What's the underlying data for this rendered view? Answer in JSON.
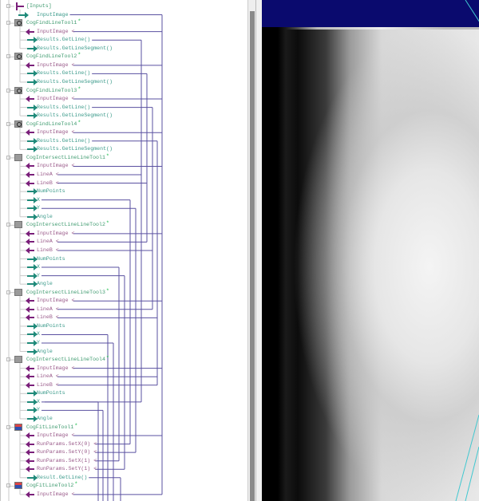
{
  "tree": {
    "rows": [
      {
        "kind": "inputs",
        "label": "[Inputs]"
      },
      {
        "kind": "out",
        "label": "InputImage"
      },
      {
        "kind": "tool",
        "icon": "find-line-icon",
        "label": "CogFindLineTool1"
      },
      {
        "kind": "in",
        "label": "InputImage"
      },
      {
        "kind": "out",
        "label": "Results.GetLine()"
      },
      {
        "kind": "out",
        "label": "Results.GetLineSegment()"
      },
      {
        "kind": "tool",
        "icon": "find-line-icon",
        "label": "CogFindLineTool2"
      },
      {
        "kind": "in",
        "label": "InputImage"
      },
      {
        "kind": "out",
        "label": "Results.GetLine()"
      },
      {
        "kind": "out",
        "label": "Results.GetLineSegment()"
      },
      {
        "kind": "tool",
        "icon": "find-line-icon",
        "label": "CogFindLineTool3"
      },
      {
        "kind": "in",
        "label": "InputImage"
      },
      {
        "kind": "out",
        "label": "Results.GetLine()"
      },
      {
        "kind": "out",
        "label": "Results.GetLineSegment()"
      },
      {
        "kind": "tool",
        "icon": "find-line-icon",
        "label": "CogFindLineTool4"
      },
      {
        "kind": "in",
        "label": "InputImage"
      },
      {
        "kind": "out",
        "label": "Results.GetLine()"
      },
      {
        "kind": "out",
        "label": "Results.GetLineSegment()"
      },
      {
        "kind": "tool",
        "icon": "intersect-line-icon",
        "label": "CogIntersectLineLineTool1"
      },
      {
        "kind": "in",
        "label": "InputImage"
      },
      {
        "kind": "in",
        "label": "LineA"
      },
      {
        "kind": "in",
        "label": "LineB"
      },
      {
        "kind": "out",
        "label": "NumPoints"
      },
      {
        "kind": "out",
        "label": "X"
      },
      {
        "kind": "out",
        "label": "Y"
      },
      {
        "kind": "out",
        "label": "Angle"
      },
      {
        "kind": "tool",
        "icon": "intersect-line-icon",
        "label": "CogIntersectLineLineTool2"
      },
      {
        "kind": "in",
        "label": "InputImage"
      },
      {
        "kind": "in",
        "label": "LineA"
      },
      {
        "kind": "in",
        "label": "LineB"
      },
      {
        "kind": "out",
        "label": "NumPoints"
      },
      {
        "kind": "out",
        "label": "X"
      },
      {
        "kind": "out",
        "label": "Y"
      },
      {
        "kind": "out",
        "label": "Angle"
      },
      {
        "kind": "tool",
        "icon": "intersect-line-icon",
        "label": "CogIntersectLineLineTool3"
      },
      {
        "kind": "in",
        "label": "InputImage"
      },
      {
        "kind": "in",
        "label": "LineA"
      },
      {
        "kind": "in",
        "label": "LineB"
      },
      {
        "kind": "out",
        "label": "NumPoints"
      },
      {
        "kind": "out",
        "label": "X"
      },
      {
        "kind": "out",
        "label": "Y"
      },
      {
        "kind": "out",
        "label": "Angle"
      },
      {
        "kind": "tool",
        "icon": "intersect-line-icon",
        "label": "CogIntersectLineLineTool4"
      },
      {
        "kind": "in",
        "label": "InputImage"
      },
      {
        "kind": "in",
        "label": "LineA"
      },
      {
        "kind": "in",
        "label": "LineB"
      },
      {
        "kind": "out",
        "label": "NumPoints"
      },
      {
        "kind": "out",
        "label": "X"
      },
      {
        "kind": "out",
        "label": "Y"
      },
      {
        "kind": "out",
        "label": "Angle"
      },
      {
        "kind": "tool",
        "icon": "fit-line-icon",
        "label": "CogFitLineTool1"
      },
      {
        "kind": "in",
        "label": "InputImage"
      },
      {
        "kind": "in",
        "label": "RunParams.SetX(0)"
      },
      {
        "kind": "in",
        "label": "RunParams.SetY(0)"
      },
      {
        "kind": "in",
        "label": "RunParams.SetX(1)"
      },
      {
        "kind": "in",
        "label": "RunParams.SetY(1)"
      },
      {
        "kind": "out",
        "label": "Result.GetLine()"
      },
      {
        "kind": "tool",
        "icon": "fit-line-icon",
        "label": "CogFitLineTool2"
      },
      {
        "kind": "in",
        "label": "InputImage"
      }
    ],
    "status_dot": "*"
  },
  "colors": {
    "wire": "#5a50a0",
    "input_terminal": "#7a1f7a",
    "output_terminal": "#1f8a7a",
    "tool_label": "#3d9a6e",
    "status_ok": "#22c050",
    "display_band": "#0a0a6e"
  }
}
